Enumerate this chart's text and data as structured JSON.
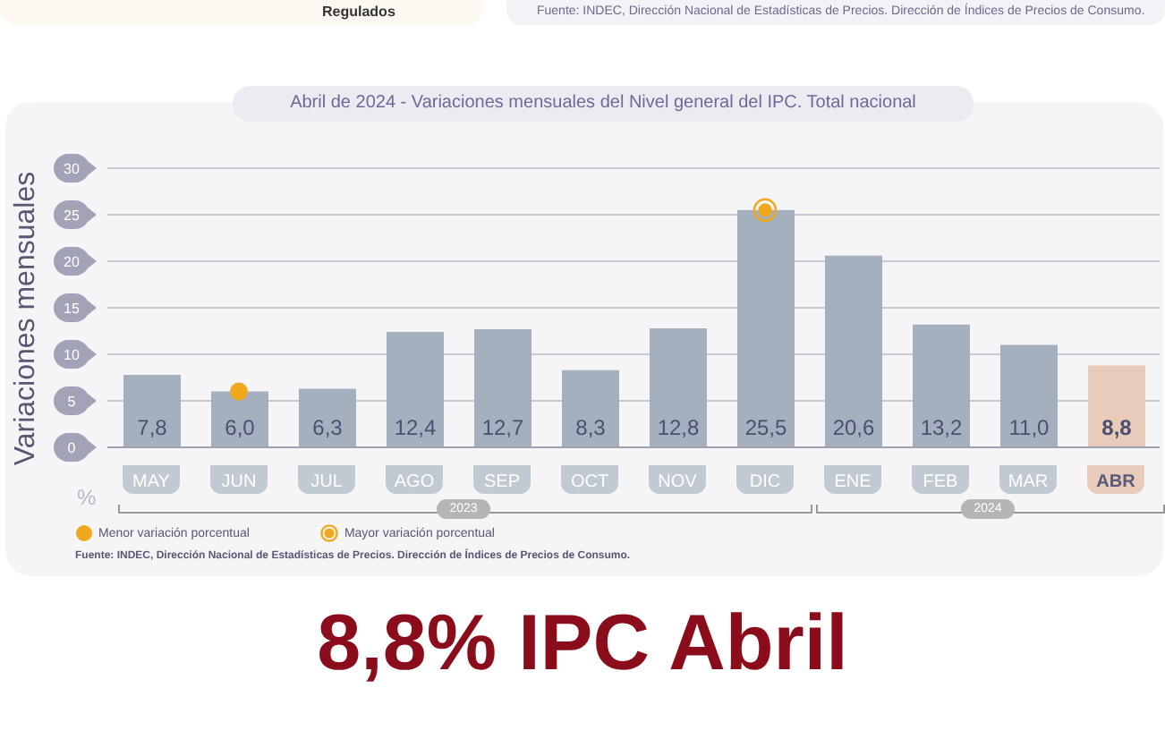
{
  "chart_data": {
    "type": "bar",
    "title": "Abril de 2024 - Variaciones mensuales del Nivel general del IPC. Total nacional",
    "ylabel": "Variaciones mensuales",
    "categories": [
      "MAY",
      "JUN",
      "JUL",
      "AGO",
      "SEP",
      "OCT",
      "NOV",
      "DIC",
      "ENE",
      "FEB",
      "MAR",
      "ABR"
    ],
    "values": [
      7.8,
      6.0,
      6.3,
      12.4,
      12.7,
      8.3,
      12.8,
      25.5,
      20.6,
      13.2,
      11.0,
      8.8
    ],
    "value_labels": [
      "7,8",
      "6,0",
      "6,3",
      "12,4",
      "12,7",
      "8,3",
      "12,8",
      "25,5",
      "20,6",
      "13,2",
      "11,0",
      "8,8"
    ],
    "colors": [
      "#a5b0bf",
      "#a5b0bf",
      "#a5b0bf",
      "#a5b0bf",
      "#a5b0bf",
      "#a5b0bf",
      "#a5b0bf",
      "#a5b0bf",
      "#a5b0bf",
      "#a5b0bf",
      "#a5b0bf",
      "#e8cbb8"
    ],
    "series": [
      {
        "type": "scatter",
        "name": "Menor variación porcentual",
        "color": "#f0a81c",
        "x": [
          "JUN"
        ],
        "values": [
          6.0
        ]
      },
      {
        "type": "scatter",
        "name": "Mayor variación porcentual",
        "color": "#f0a81c",
        "x": [
          "DIC"
        ],
        "values": [
          25.5
        ]
      }
    ],
    "ylim": [
      0,
      30
    ],
    "yticks": [
      0,
      5,
      10,
      15,
      20,
      25,
      30
    ],
    "grid": "y",
    "legend": "bottom left",
    "marker": "circle",
    "annotations": [
      "Regulados",
      "Fuente: INDEC, Dirección Nacional de Estadísticas de Precios. Dirección de Índices de Precios de Consumo.",
      "%",
      "2023",
      "2024",
      "Fuente: INDEC, Dirección Nacional de Estadísticas de Precios. Dirección de Índices de Precios de Consumo.",
      "8,8% IPC Abril"
    ]
  }
}
